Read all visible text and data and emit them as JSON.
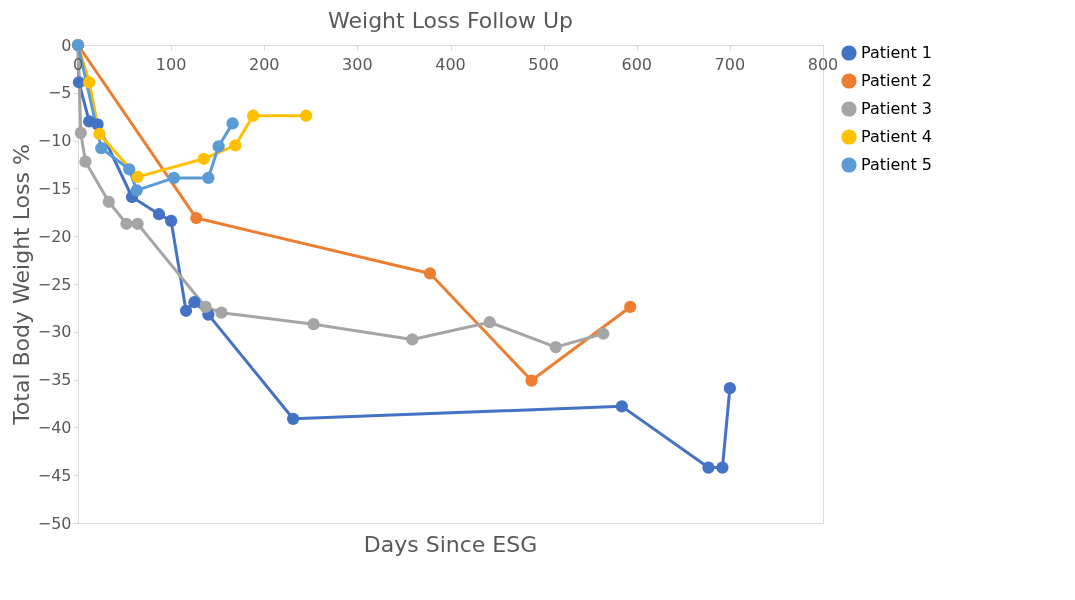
{
  "chart_data": {
    "type": "line",
    "title": "Weight Loss Follow Up",
    "xlabel": "Days Since ESG",
    "ylabel": "Total Body Weight Loss %",
    "xlim": [
      0,
      800
    ],
    "xticks": [
      0,
      100,
      200,
      300,
      400,
      500,
      600,
      700,
      800
    ],
    "ylim": [
      -50,
      0
    ],
    "yticks": [
      -50,
      -45,
      -40,
      -35,
      -30,
      -25,
      -20,
      -15,
      -10,
      -5,
      0
    ],
    "grid": false,
    "legend": "right",
    "marker": "circle",
    "line_style": "solid",
    "series": [
      {
        "name": "Patient 1",
        "color": "#4472c4",
        "x": [
          0,
          1,
          12,
          21,
          58,
          87,
          100,
          116,
          125,
          140,
          231,
          584,
          677,
          692,
          700
        ],
        "values": [
          0,
          -3.9,
          -8.0,
          -8.3,
          -15.9,
          -17.7,
          -18.4,
          -27.8,
          -26.9,
          -28.2,
          -39.1,
          -37.8,
          -44.2,
          -44.2,
          -35.9
        ]
      },
      {
        "name": "Patient 2",
        "color": "#ed7d31",
        "x": [
          0,
          127,
          378,
          487,
          593
        ],
        "values": [
          0,
          -18.1,
          -23.9,
          -35.1,
          -27.4
        ]
      },
      {
        "name": "Patient 3",
        "color": "#a5a5a5",
        "x": [
          0,
          3,
          8,
          33,
          52,
          64,
          137,
          154,
          253,
          359,
          442,
          513,
          564
        ],
        "values": [
          0,
          -9.2,
          -12.2,
          -16.4,
          -18.7,
          -18.7,
          -27.4,
          -28.0,
          -29.2,
          -30.8,
          -29.0,
          -31.6,
          -30.2
        ]
      },
      {
        "name": "Patient 4",
        "color": "#ffc000",
        "x": [
          0,
          12,
          23,
          64,
          135,
          169,
          188,
          245
        ],
        "values": [
          0,
          -3.9,
          -9.3,
          -13.8,
          -11.9,
          -10.5,
          -7.4,
          -7.4
        ]
      },
      {
        "name": "Patient 5",
        "color": "#5b9bd5",
        "x": [
          0,
          25,
          55,
          63,
          103,
          140,
          151,
          166
        ],
        "values": [
          0,
          -10.8,
          -13.0,
          -15.2,
          -13.9,
          -13.9,
          -10.6,
          -8.2
        ]
      }
    ]
  }
}
